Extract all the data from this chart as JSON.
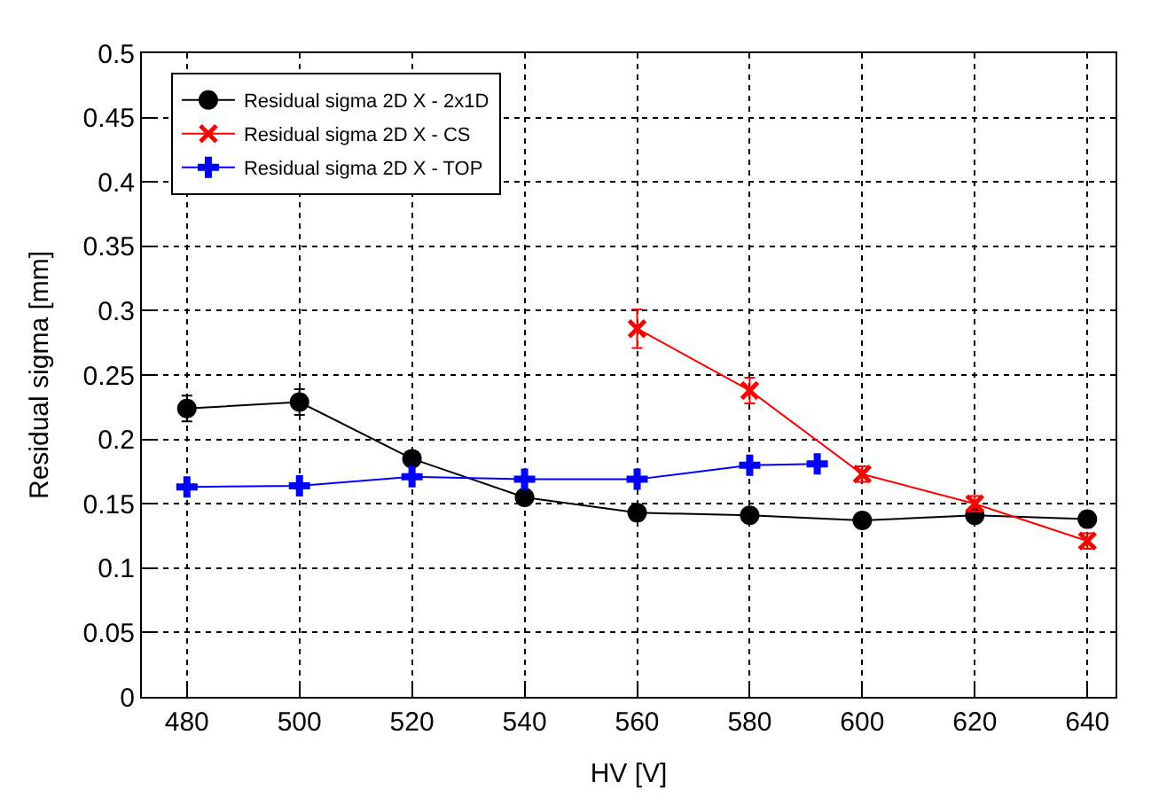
{
  "chart_data": {
    "type": "line",
    "xlabel": "HV [V]",
    "ylabel": "Residual sigma [mm]",
    "xlim": [
      472,
      645
    ],
    "xticks": [
      480,
      500,
      520,
      540,
      560,
      580,
      600,
      620,
      640
    ],
    "ylim": [
      0,
      0.5
    ],
    "yticks": [
      0,
      0.05,
      0.1,
      0.15,
      0.2,
      0.25,
      0.3,
      0.35,
      0.4,
      0.45,
      0.5
    ],
    "grid": true,
    "legend": "top left",
    "series": [
      {
        "name": "Residual sigma 2D X - 2x1D",
        "color": "#000000",
        "marker": "circle",
        "x": [
          480,
          500,
          520,
          540,
          560,
          580,
          600,
          620,
          640
        ],
        "values": [
          0.224,
          0.229,
          0.185,
          0.155,
          0.143,
          0.141,
          0.137,
          0.141,
          0.138
        ],
        "errors": [
          0.01,
          0.01,
          null,
          null,
          null,
          null,
          null,
          null,
          null
        ]
      },
      {
        "name": "Residual sigma 2D X - CS",
        "color": "#ff0000",
        "marker": "cross",
        "x": [
          560,
          580,
          600,
          620,
          640
        ],
        "values": [
          0.286,
          0.238,
          0.173,
          0.15,
          0.121
        ],
        "errors": [
          0.015,
          0.01,
          0.006,
          0.006,
          0.006
        ]
      },
      {
        "name": "Residual sigma 2D X - TOP",
        "color": "#0000ff",
        "marker": "plus",
        "x": [
          480,
          500,
          520,
          540,
          560,
          580,
          592
        ],
        "values": [
          0.163,
          0.164,
          0.171,
          0.169,
          0.169,
          0.18,
          0.181
        ]
      }
    ]
  }
}
